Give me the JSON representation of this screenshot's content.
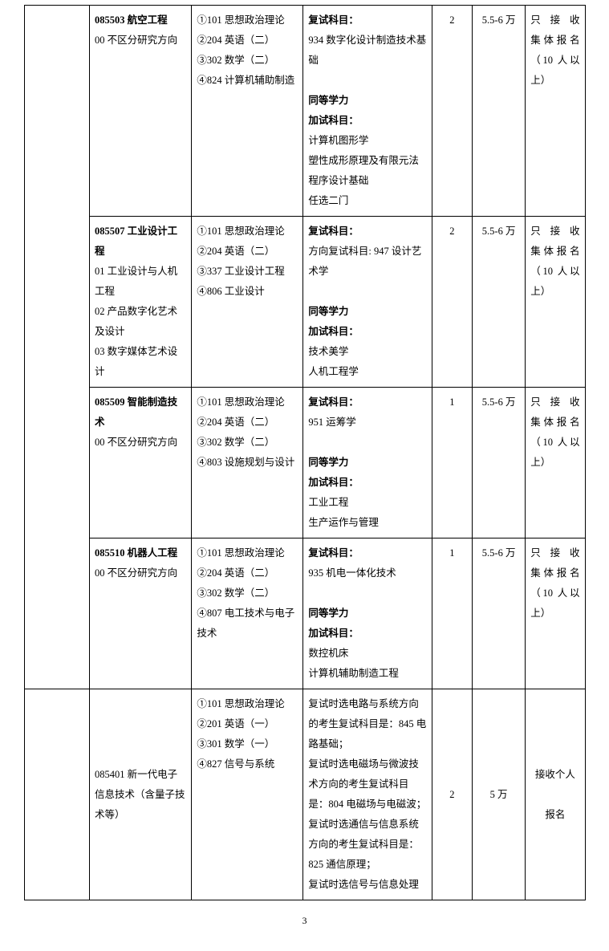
{
  "page_number": "3",
  "table": {
    "columns": {
      "blank_w": 70,
      "major_w": 116,
      "exam_w": 128,
      "re_w": 150,
      "num_w": 38,
      "fee_w": 54,
      "note_w": 62
    },
    "border_color": "#000000",
    "rows": [
      {
        "col1_rowspan": 4,
        "major_code": "085503",
        "major_name": "航空工程",
        "directions": [
          "00 不区分研究方向"
        ],
        "exam_subjects": [
          "①101 思想政治理论",
          "②204 英语（二）",
          "③302 数学（二）",
          "④824 计算机辅助制造"
        ],
        "retest_heading": "复试科目：",
        "retest_subjects": [
          "934 数字化设计制造技术基础"
        ],
        "equiv_heading": "同等学力",
        "extra_heading": "加试科目：",
        "extra_subjects": [
          "计算机图形学",
          "塑性成形原理及有限元法",
          "程序设计基础",
          "任选二门"
        ],
        "quota": "2",
        "fee": "5.5-6 万",
        "note": [
          "只 接 收",
          "集体报名",
          "（10 人以",
          "上）"
        ]
      },
      {
        "major_code": "085507",
        "major_name": "工业设计工程",
        "directions": [
          "01 工业设计与人机工程",
          "02 产品数字化艺术及设计",
          "03 数字媒体艺术设计"
        ],
        "exam_subjects": [
          "①101 思想政治理论",
          "②204 英语（二）",
          "③337 工业设计工程",
          "④806 工业设计"
        ],
        "retest_heading": "复试科目：",
        "retest_subjects": [
          "方向复试科目: 947 设计艺术学"
        ],
        "equiv_heading": "同等学力",
        "extra_heading": "加试科目：",
        "extra_subjects": [
          "技术美学",
          "人机工程学"
        ],
        "quota": "2",
        "fee": "5.5-6 万",
        "note": [
          "只 接 收",
          "集体报名",
          "（10 人以",
          "上）"
        ]
      },
      {
        "major_code": "085509",
        "major_name": " 智能制造技术",
        "directions": [
          "00 不区分研究方向"
        ],
        "exam_subjects": [
          "①101 思想政治理论",
          "②204 英语（二）",
          "③302 数学（二）",
          "④803 设施规划与设计"
        ],
        "retest_heading": "复试科目：",
        "retest_subjects": [
          "951 运筹学"
        ],
        "equiv_heading": "同等学力",
        "extra_heading": "加试科目：",
        "extra_subjects": [
          "工业工程",
          "生产运作与管理"
        ],
        "quota": "1",
        "fee": "5.5-6 万",
        "note": [
          "只 接 收",
          "集体报名",
          "（10 人以",
          "上）"
        ]
      },
      {
        "major_code": "085510",
        "major_name": " 机器人工程",
        "directions": [
          "00 不区分研究方向"
        ],
        "exam_subjects": [
          "①101 思想政治理论",
          "②204 英语（二）",
          "③302 数学（二）",
          "④807 电工技术与电子技术"
        ],
        "retest_heading": "复试科目：",
        "retest_subjects": [
          "935 机电一体化技术"
        ],
        "equiv_heading": "同等学力",
        "extra_heading": "加试科目：",
        "extra_subjects": [
          "数控机床",
          "计算机辅助制造工程"
        ],
        "quota": "1",
        "fee": "5.5-6 万",
        "note": [
          "只 接 收",
          "集体报名",
          "（10 人以",
          "上）"
        ]
      },
      {
        "col1_rowspan": 1,
        "major_code": "085401",
        "major_name": " 新一代电子信息技术（含量子技术等）",
        "directions": [],
        "major_vertical_center": true,
        "exam_subjects": [
          "①101 思想政治理论",
          "②201 英语（一）",
          "③301 数学（一）",
          "④827 信号与系统"
        ],
        "retest_plain": [
          "复试时选电路与系统方向的考生复试科目是：845 电路基础；",
          "复试时选电磁场与微波技术方向的考生复试科目是：804 电磁场与电磁波；",
          "复试时选通信与信息系统方向的考生复试科目是：825 通信原理；",
          "复试时选信号与信息处理"
        ],
        "quota": "2",
        "fee": "5 万",
        "num_fee_vertical_center": true,
        "note_plain": [
          "接收个人",
          "报名"
        ],
        "note_vertical_center": true
      }
    ]
  }
}
